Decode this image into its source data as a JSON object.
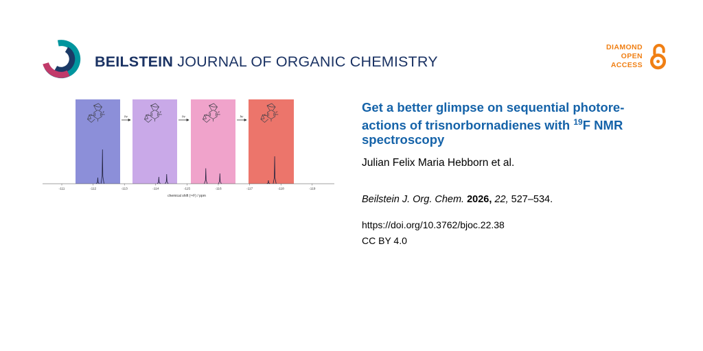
{
  "header": {
    "journal_bold": "BEILSTEIN",
    "journal_rest": " JOURNAL OF ORGANIC CHEMISTRY",
    "open_access": {
      "line1": "DIAMOND",
      "line2": "OPEN",
      "line3": "ACCESS"
    },
    "brand_navy": "#1a3263",
    "brand_orange": "#f07f13"
  },
  "figure": {
    "f_label": "F",
    "arrow_label": "hν",
    "panels": [
      {
        "color": "#8c8fd9"
      },
      {
        "color": "#c9a9e8"
      },
      {
        "color": "#f0a3cb"
      },
      {
        "color": "#ec756b"
      }
    ]
  },
  "chart_data": {
    "type": "line",
    "xlabel": "chemical shift (¹⁹F) / ppm",
    "x_ticks": [
      -111,
      -112,
      -113,
      -114,
      -115,
      -116,
      -117,
      -118,
      -119
    ],
    "x_range": [
      -110.5,
      -119.5
    ],
    "peaks": [
      {
        "ppm": -112.15,
        "rel_intensity": 0.18
      },
      {
        "ppm": -112.3,
        "rel_intensity": 1.0
      },
      {
        "ppm": -114.1,
        "rel_intensity": 0.2
      },
      {
        "ppm": -114.35,
        "rel_intensity": 0.28
      },
      {
        "ppm": -115.6,
        "rel_intensity": 0.45
      },
      {
        "ppm": -116.05,
        "rel_intensity": 0.3
      },
      {
        "ppm": -117.6,
        "rel_intensity": 0.1
      },
      {
        "ppm": -117.8,
        "rel_intensity": 0.8
      }
    ]
  },
  "article": {
    "title": {
      "line1": "Get a better glimpse on sequential photore-",
      "line2_pre": "actions of trisnorbornadienes with ",
      "sup": "19",
      "line2_post": "F NMR",
      "line3": "spectroscopy"
    },
    "title_color": "#1563a9",
    "authors": "Julian Felix Maria Hebborn et al.",
    "citation": {
      "journal": "Beilstein J. Org. Chem. ",
      "year": "2026, ",
      "volume": "22, ",
      "pages": "527–534."
    },
    "doi": "https://doi.org/10.3762/bjoc.22.38",
    "license": "CC BY 4.0"
  }
}
